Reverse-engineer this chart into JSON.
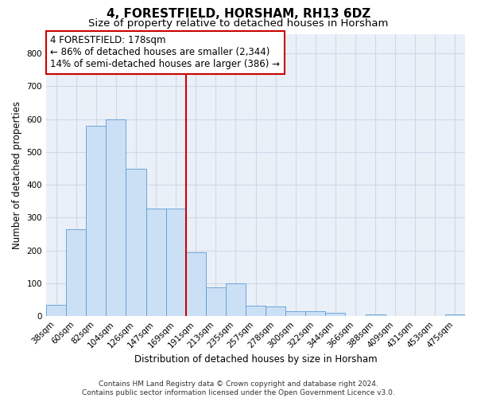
{
  "title": "4, FORESTFIELD, HORSHAM, RH13 6DZ",
  "subtitle": "Size of property relative to detached houses in Horsham",
  "xlabel": "Distribution of detached houses by size in Horsham",
  "ylabel": "Number of detached properties",
  "categories": [
    "38sqm",
    "60sqm",
    "82sqm",
    "104sqm",
    "126sqm",
    "147sqm",
    "169sqm",
    "191sqm",
    "213sqm",
    "235sqm",
    "257sqm",
    "278sqm",
    "300sqm",
    "322sqm",
    "344sqm",
    "366sqm",
    "388sqm",
    "409sqm",
    "431sqm",
    "453sqm",
    "475sqm"
  ],
  "values": [
    35,
    265,
    580,
    600,
    450,
    328,
    328,
    195,
    88,
    100,
    33,
    30,
    15,
    14,
    10,
    0,
    5,
    0,
    0,
    0,
    5
  ],
  "bar_color": "#cce0f5",
  "bar_edge_color": "#5b9bd5",
  "vline_index": 7,
  "vline_color": "#cc0000",
  "annotation_text": "4 FORESTFIELD: 178sqm\n← 86% of detached houses are smaller (2,344)\n14% of semi-detached houses are larger (386) →",
  "annotation_box_color": "#cc0000",
  "ylim": [
    0,
    860
  ],
  "yticks": [
    0,
    100,
    200,
    300,
    400,
    500,
    600,
    700,
    800
  ],
  "grid_color": "#d0d8e8",
  "bg_color": "#eaf0f8",
  "footnote": "Contains HM Land Registry data © Crown copyright and database right 2024.\nContains public sector information licensed under the Open Government Licence v3.0.",
  "title_fontsize": 11,
  "subtitle_fontsize": 9.5,
  "label_fontsize": 8.5,
  "tick_fontsize": 7.5,
  "annot_fontsize": 8.5
}
